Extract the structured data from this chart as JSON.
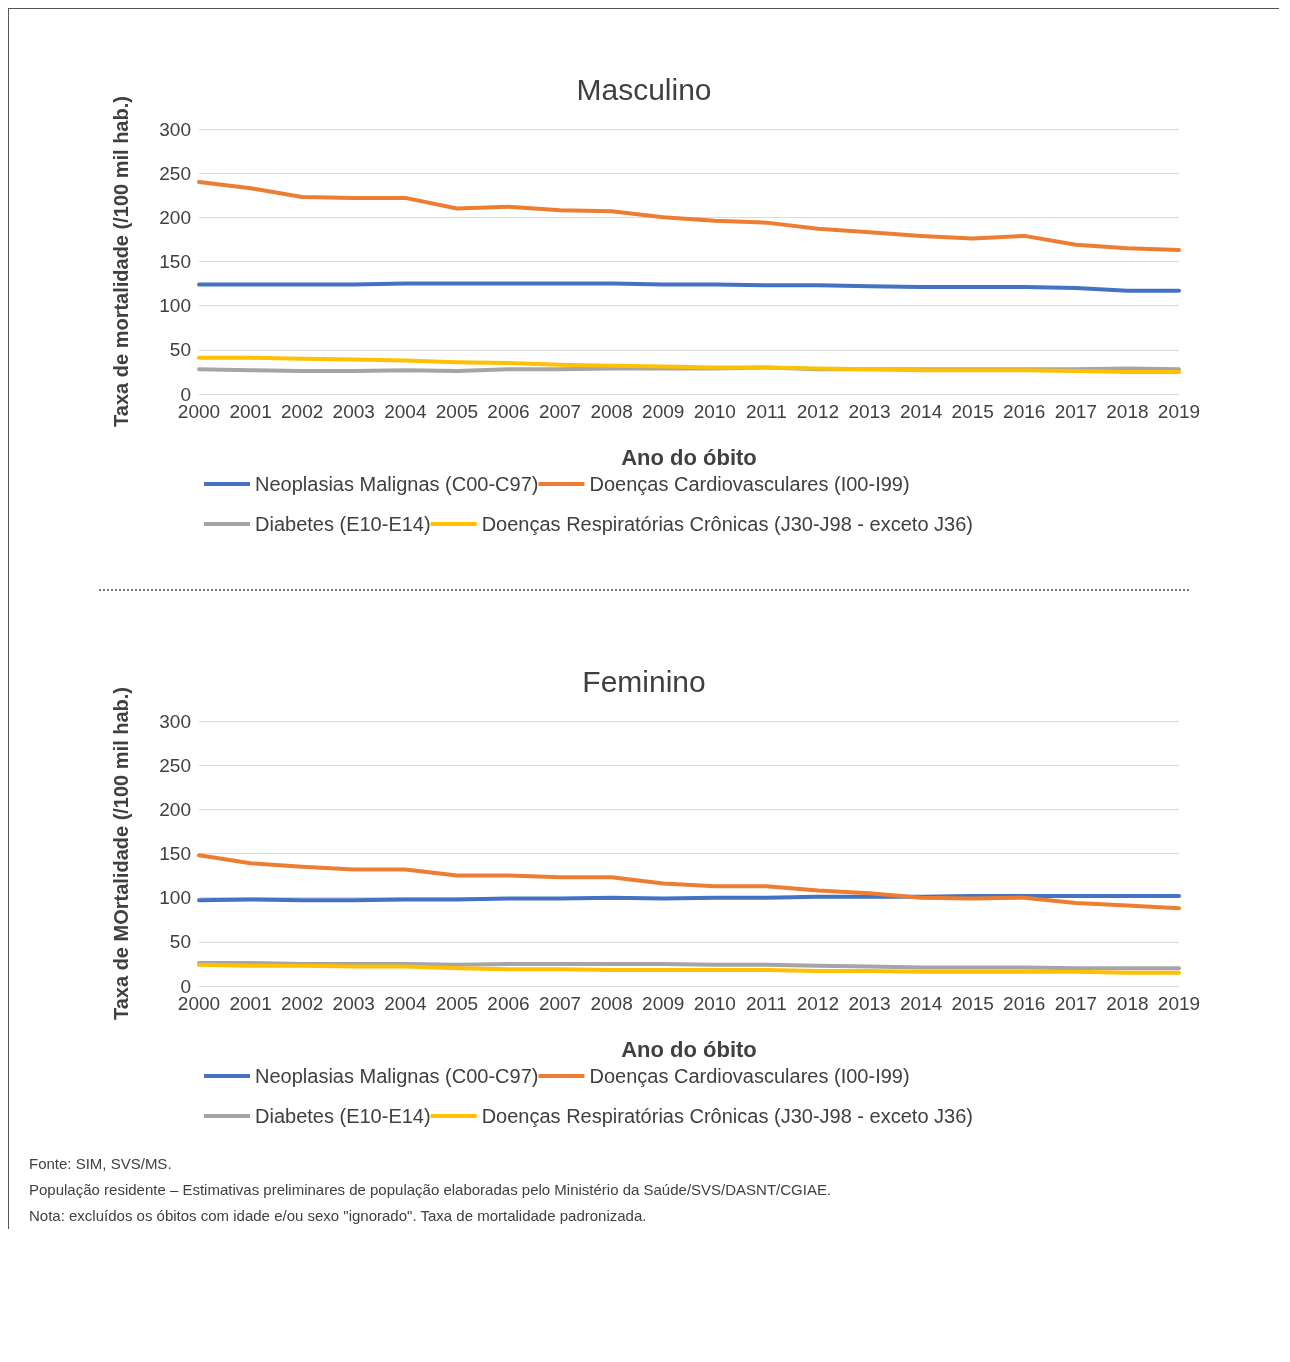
{
  "chart_data": [
    {
      "type": "line",
      "title": "Masculino",
      "xlabel": "Ano do óbito",
      "ylabel": "Taxa de mortalidade (/100 mil hab.)",
      "categories": [
        "2000",
        "2001",
        "2002",
        "2003",
        "2004",
        "2005",
        "2006",
        "2007",
        "2008",
        "2009",
        "2010",
        "2011",
        "2012",
        "2013",
        "2014",
        "2015",
        "2016",
        "2017",
        "2018",
        "2019"
      ],
      "ylim": [
        0,
        300
      ],
      "yticks": [
        0,
        50,
        100,
        150,
        200,
        250,
        300
      ],
      "grid": "y",
      "legend": "bottom",
      "marker": "none",
      "line_style": "solid",
      "series": [
        {
          "name": "Neoplasias Malignas (C00-C97)",
          "color": "#4472c4",
          "values": [
            124,
            124,
            124,
            124,
            125,
            125,
            125,
            125,
            125,
            124,
            124,
            123,
            123,
            122,
            121,
            121,
            121,
            120,
            117,
            117
          ]
        },
        {
          "name": "Doenças Cardiovasculares (I00-I99)",
          "color": "#ed7d31",
          "values": [
            240,
            233,
            223,
            222,
            222,
            210,
            212,
            208,
            207,
            200,
            196,
            194,
            187,
            183,
            179,
            176,
            179,
            169,
            165,
            163
          ]
        },
        {
          "name": "Diabetes (E10-E14)",
          "color": "#a5a5a5",
          "values": [
            28,
            27,
            26,
            26,
            27,
            26,
            28,
            28,
            29,
            29,
            29,
            30,
            28,
            28,
            28,
            28,
            28,
            28,
            29,
            28
          ]
        },
        {
          "name": "Doenças Respiratórias Crônicas (J30-J98 - exceto J36)",
          "color": "#ffc000",
          "values": [
            41,
            41,
            40,
            39,
            38,
            36,
            35,
            33,
            32,
            31,
            30,
            30,
            29,
            28,
            27,
            27,
            27,
            26,
            25,
            25
          ]
        }
      ]
    },
    {
      "type": "line",
      "title": "Feminino",
      "xlabel": "Ano do óbito",
      "ylabel": "Taxa de MOrtalidade (/100 mil hab.)",
      "categories": [
        "2000",
        "2001",
        "2002",
        "2003",
        "2004",
        "2005",
        "2006",
        "2007",
        "2008",
        "2009",
        "2010",
        "2011",
        "2012",
        "2013",
        "2014",
        "2015",
        "2016",
        "2017",
        "2018",
        "2019"
      ],
      "ylim": [
        0,
        300
      ],
      "yticks": [
        0,
        50,
        100,
        150,
        200,
        250,
        300
      ],
      "grid": "y",
      "legend": "bottom",
      "marker": "none",
      "line_style": "solid",
      "series": [
        {
          "name": "Neoplasias Malignas (C00-C97)",
          "color": "#4472c4",
          "values": [
            97,
            98,
            97,
            97,
            98,
            98,
            99,
            99,
            100,
            99,
            100,
            100,
            101,
            101,
            101,
            102,
            102,
            102,
            102,
            102
          ]
        },
        {
          "name": "Doenças Cardiovasculares (I00-I99)",
          "color": "#ed7d31",
          "values": [
            148,
            139,
            135,
            132,
            132,
            125,
            125,
            123,
            123,
            116,
            113,
            113,
            108,
            105,
            100,
            99,
            100,
            94,
            91,
            88
          ]
        },
        {
          "name": "Diabetes (E10-E14)",
          "color": "#a5a5a5",
          "values": [
            26,
            26,
            25,
            25,
            25,
            24,
            25,
            25,
            25,
            25,
            24,
            24,
            23,
            22,
            21,
            21,
            21,
            20,
            20,
            20
          ]
        },
        {
          "name": "Doenças Respiratórias Crônicas (J30-J98 - exceto J36)",
          "color": "#ffc000",
          "values": [
            24,
            23,
            23,
            22,
            22,
            20,
            19,
            19,
            18,
            18,
            18,
            18,
            17,
            17,
            16,
            16,
            16,
            16,
            15,
            15
          ]
        }
      ],
      "annotations": [
        "Fonte:  SIM, SVS/MS.",
        "População residente – Estimativas preliminares de população elaboradas pelo Ministério da Saúde/SVS/DASNT/CGIAE.",
        "Nota: excluídos os óbitos com idade e/ou sexo \"ignorado\". Taxa de mortalidade padronizada."
      ]
    }
  ]
}
